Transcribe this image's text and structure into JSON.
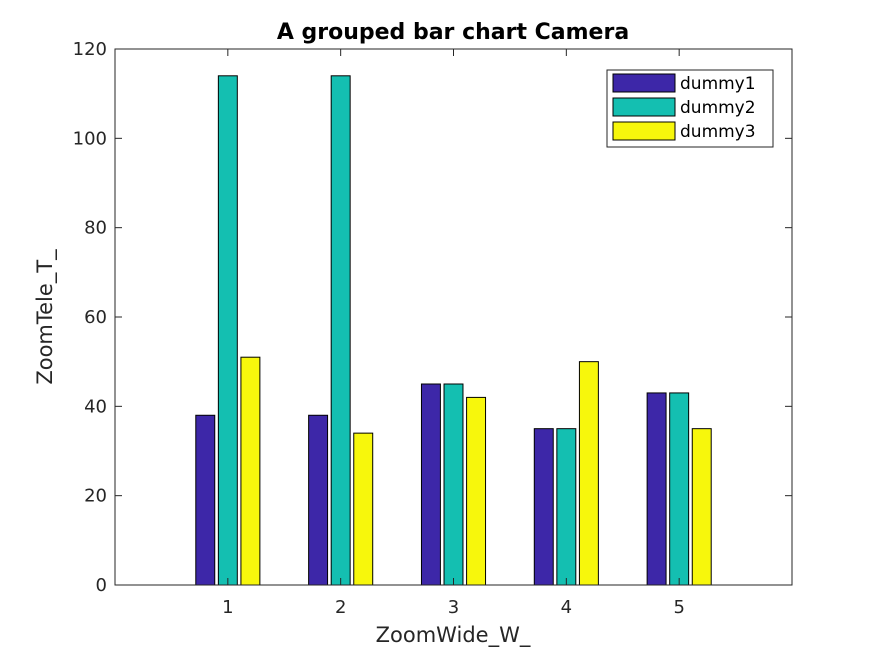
{
  "chart_data": {
    "type": "bar",
    "title": "A grouped bar chart Camera",
    "xlabel": "ZoomWide_W_",
    "ylabel": "ZoomTele_T_",
    "categories": [
      "1",
      "2",
      "3",
      "4",
      "5"
    ],
    "series": [
      {
        "name": "dummy1",
        "color": "#3d27a8",
        "values": [
          38,
          38,
          45,
          35,
          43
        ]
      },
      {
        "name": "dummy2",
        "color": "#14bfb1",
        "values": [
          114,
          114,
          45,
          35,
          43
        ]
      },
      {
        "name": "dummy3",
        "color": "#f7f70c",
        "values": [
          51,
          34,
          42,
          50,
          35
        ]
      }
    ],
    "xlim": [
      0,
      6
    ],
    "ylim": [
      0,
      120
    ],
    "yticks": [
      0,
      20,
      40,
      60,
      80,
      100,
      120
    ],
    "yticklabels": [
      "0",
      "20",
      "40",
      "60",
      "80",
      "100",
      "120"
    ],
    "grid": false,
    "legend_position": "top-right"
  }
}
